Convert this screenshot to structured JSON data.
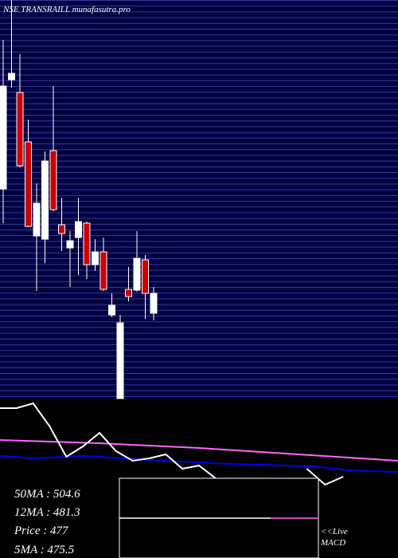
{
  "chart_data": {
    "type": "candlestick",
    "title": "NSE TRANSRAILL munafasutra.pro",
    "categories": [
      null,
      null,
      null,
      null,
      null,
      null,
      null,
      null,
      null,
      null,
      null,
      null,
      null,
      null,
      null,
      null,
      null,
      null,
      null
    ],
    "open": [
      535.2,
      590,
      583.6,
      558.8,
      511.6,
      510,
      554.4,
      517.2,
      505.6,
      510.8,
      518,
      497.2,
      503.6,
      472,
      430,
      484.8,
      484.4,
      499.6,
      472.8
    ],
    "high": [
      610,
      630,
      602.8,
      570,
      538,
      554,
      586.8,
      530.8,
      514,
      530.8,
      518.8,
      510,
      510.8,
      482.8,
      472,
      496,
      514,
      502,
      486
    ],
    "low": [
      518,
      586,
      546,
      516,
      484,
      498,
      524,
      504,
      486,
      492,
      490,
      494,
      484,
      470.8,
      430,
      478.8,
      483.6,
      470,
      469.2
    ],
    "close": [
      586.8,
      593.2,
      546.8,
      516.4,
      528,
      549.2,
      524.8,
      512.8,
      509.2,
      518.8,
      497.2,
      503.6,
      484.8,
      476.8,
      468,
      481.2,
      500.4,
      482.8,
      482.8
    ],
    "up_color": "#ffffff",
    "down_color": "#cc0000",
    "ylim": [
      430,
      630
    ],
    "lower": {
      "xlim": [
        0,
        24
      ],
      "ylim": [
        -100,
        100
      ],
      "series": [
        {
          "name": null,
          "color": "#ff66ff",
          "x": [
            0,
            6,
            12,
            18,
            24
          ],
          "values": [
            48,
            44,
            38,
            30,
            22
          ]
        },
        {
          "name": null,
          "color": "#0000ee",
          "x": [
            0,
            2,
            5,
            10,
            14,
            19,
            21,
            24
          ],
          "values": [
            28,
            25,
            28,
            22,
            18,
            15,
            10,
            8
          ]
        },
        {
          "name": null,
          "color": "#ffffff",
          "x": [
            0,
            1,
            2,
            3,
            4,
            5,
            6,
            7,
            8,
            9,
            10,
            11,
            12,
            13,
            14,
            18.5,
            19.6,
            20.7
          ],
          "values": [
            88,
            88,
            94,
            65,
            27,
            40,
            57,
            34,
            22,
            25,
            30,
            12,
            16,
            0,
            null,
            12,
            -8,
            2
          ]
        }
      ]
    },
    "legend": [
      "50MA : 504.6",
      "12MA : 481.3",
      "Price : 477",
      "5MA : 475.5"
    ],
    "macd_labels": [
      "<<Live",
      "MACD"
    ]
  }
}
